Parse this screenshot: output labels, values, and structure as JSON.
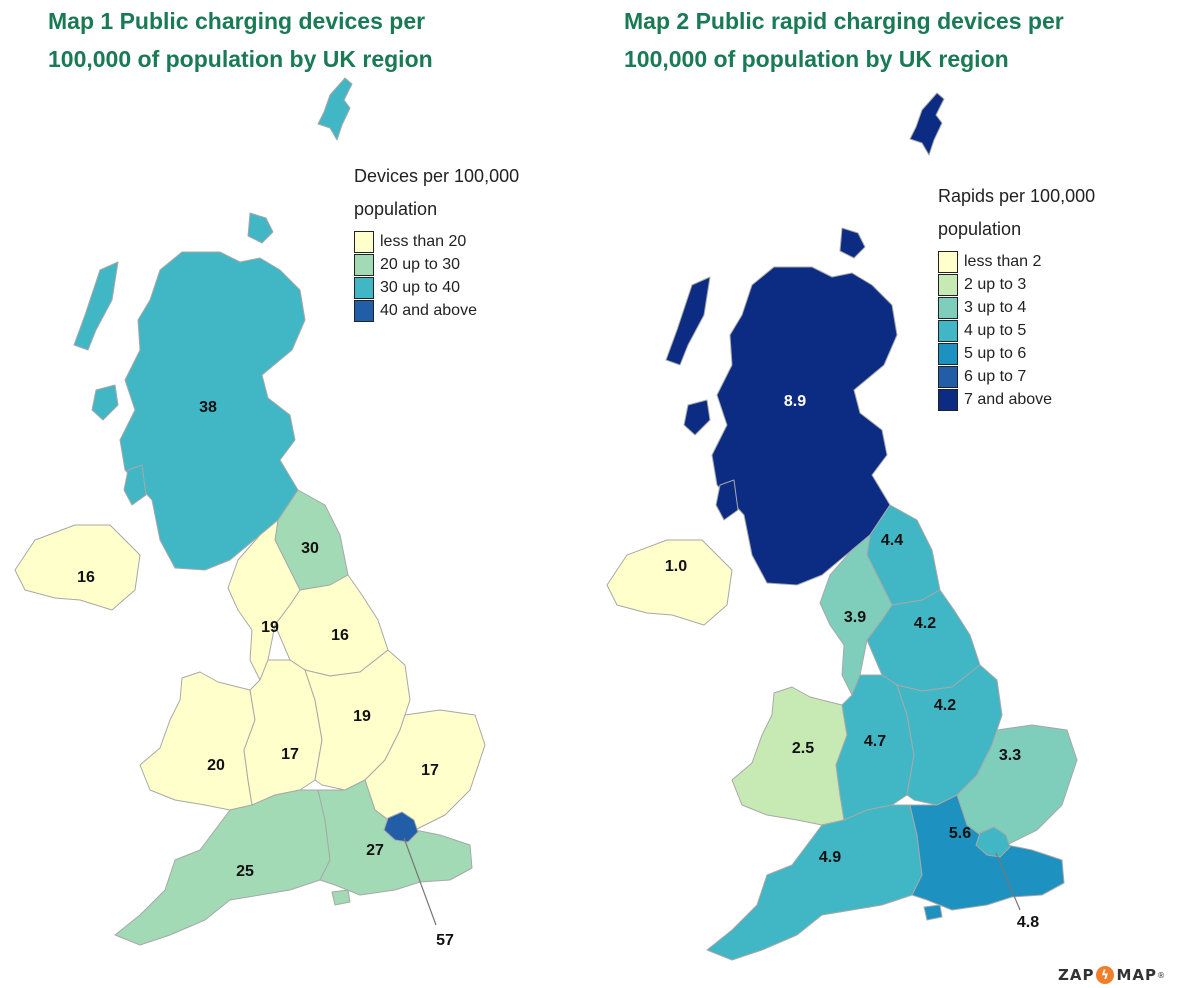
{
  "maps": [
    {
      "title": "Map 1 Public charging devices per\n100,000 of population by UK region",
      "legend_title": "Devices per 100,000\npopulation",
      "legend": [
        {
          "label": "less than 20",
          "color": "#ffffcc"
        },
        {
          "label": "20 up to 30",
          "color": "#a1dab4"
        },
        {
          "label": "30 up to 40",
          "color": "#41b6c4"
        },
        {
          "label": "40 and above",
          "color": "#225ea8"
        }
      ],
      "regions": [
        {
          "name": "Scotland",
          "value": "38",
          "color": "#41b6c4"
        },
        {
          "name": "North East",
          "value": "30",
          "color": "#a1dab4"
        },
        {
          "name": "North West",
          "value": "19",
          "color": "#ffffcc"
        },
        {
          "name": "Yorkshire and the Humber",
          "value": "16",
          "color": "#ffffcc"
        },
        {
          "name": "Northern Ireland",
          "value": "16",
          "color": "#ffffcc"
        },
        {
          "name": "Wales",
          "value": "20",
          "color": "#ffffcc"
        },
        {
          "name": "West Midlands",
          "value": "17",
          "color": "#ffffcc"
        },
        {
          "name": "East Midlands",
          "value": "19",
          "color": "#ffffcc"
        },
        {
          "name": "East of England",
          "value": "17",
          "color": "#ffffcc"
        },
        {
          "name": "South West",
          "value": "25",
          "color": "#a1dab4"
        },
        {
          "name": "South East",
          "value": "27",
          "color": "#a1dab4"
        },
        {
          "name": "London",
          "value": "57",
          "color": "#225ea8"
        }
      ]
    },
    {
      "title": "Map 2 Public rapid charging devices per\n100,000 of population by UK region",
      "legend_title": "Rapids per 100,000\npopulation",
      "legend": [
        {
          "label": "less than 2",
          "color": "#ffffcc"
        },
        {
          "label": "2 up to 3",
          "color": "#c7e9b4"
        },
        {
          "label": "3 up to 4",
          "color": "#7fcdbb"
        },
        {
          "label": "4 up to 5",
          "color": "#41b6c4"
        },
        {
          "label": "5 up to 6",
          "color": "#1d91c0"
        },
        {
          "label": "6 up to 7",
          "color": "#225ea8"
        },
        {
          "label": "7 and above",
          "color": "#0c2c84"
        }
      ],
      "regions": [
        {
          "name": "Scotland",
          "value": "8.9",
          "color": "#0c2c84"
        },
        {
          "name": "North East",
          "value": "4.4",
          "color": "#41b6c4"
        },
        {
          "name": "North West",
          "value": "3.9",
          "color": "#7fcdbb"
        },
        {
          "name": "Yorkshire and the Humber",
          "value": "4.2",
          "color": "#41b6c4"
        },
        {
          "name": "Northern Ireland",
          "value": "1.0",
          "color": "#ffffcc"
        },
        {
          "name": "Wales",
          "value": "2.5",
          "color": "#c7e9b4"
        },
        {
          "name": "West Midlands",
          "value": "4.7",
          "color": "#41b6c4"
        },
        {
          "name": "East Midlands",
          "value": "4.2",
          "color": "#41b6c4"
        },
        {
          "name": "East of England",
          "value": "3.3",
          "color": "#7fcdbb"
        },
        {
          "name": "South West",
          "value": "4.9",
          "color": "#41b6c4"
        },
        {
          "name": "South East",
          "value": "5.6",
          "color": "#1d91c0"
        },
        {
          "name": "London",
          "value": "4.8",
          "color": "#41b6c4"
        }
      ]
    }
  ],
  "logo": {
    "left": "ZAP",
    "mark": "ϟ",
    "right": "MAP",
    "reg": "®"
  }
}
